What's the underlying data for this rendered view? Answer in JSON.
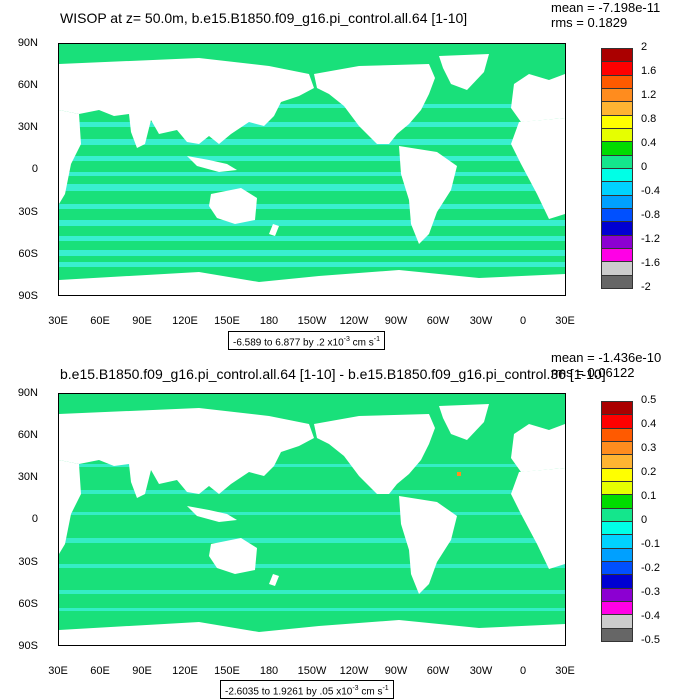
{
  "top_panel": {
    "title": "WISOP at z=  50.0m, b.e15.B1850.f09_g16.pi_control.all.64 [1-10]",
    "mean": "mean = -7.198e-11",
    "rms": "rms = 0.1829",
    "range_text": "-6.589 to 6.877 by .2 x10",
    "range_exp": "-3",
    "range_units": " cm s",
    "range_units_exp": "-1",
    "colorbar_labels": [
      "2",
      "1.6",
      "1.2",
      "0.8",
      "0.4",
      "0",
      "-0.4",
      "-0.8",
      "-1.2",
      "-1.6",
      "-2"
    ]
  },
  "bottom_panel": {
    "title": "b.e15.B1850.f09_g16.pi_control.all.64 [1-10] - b.e15.B1850.f09_g16.pi_control.36 [1-10]",
    "mean": "mean = -1.436e-10",
    "rms": "rms = 0.06122",
    "range_text": "-2.6035 to 1.9261 by .05 x10",
    "range_exp": "-3",
    "range_units": " cm s",
    "range_units_exp": "-1",
    "colorbar_labels": [
      "0.5",
      "0.4",
      "0.3",
      "0.2",
      "0.1",
      "0",
      "-0.1",
      "-0.2",
      "-0.3",
      "-0.4",
      "-0.5"
    ]
  },
  "lat_labels": [
    "90N",
    "60N",
    "30N",
    "0",
    "30S",
    "60S",
    "90S"
  ],
  "lon_labels": [
    "30E",
    "60E",
    "90E",
    "120E",
    "150E",
    "180",
    "150W",
    "120W",
    "90W",
    "60W",
    "30W",
    "0",
    "30E"
  ],
  "colormap": [
    "#aa0000",
    "#ff0000",
    "#ff5a00",
    "#ff8c1e",
    "#ffb432",
    "#ffff00",
    "#e6ff00",
    "#00dc00",
    "#14e68c",
    "#00ffe6",
    "#00d2ff",
    "#00a0ff",
    "#0050ff",
    "#0000d2",
    "#8c00d2",
    "#ff00e6",
    "#cccccc",
    "#666666"
  ],
  "ocean_color": "#19e07a",
  "ocean_alt_color": "#3ff2de",
  "land_color": "#ffffff"
}
